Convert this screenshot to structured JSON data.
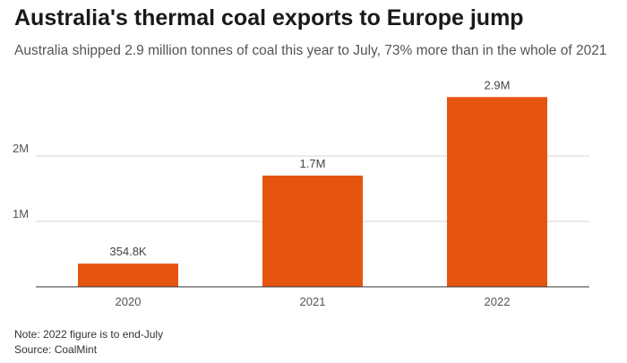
{
  "title": "Australia's thermal coal exports to Europe jump",
  "subtitle": "Australia shipped 2.9 million tonnes of coal this year to July, 73% more than in the whole of 2021",
  "note": "Note: 2022 figure is to end-July",
  "source": "Source: CoalMint",
  "colors": {
    "bar": "#e55510",
    "grid": "#d6d6d6",
    "axis": "#333333"
  },
  "chart_data": {
    "type": "bar",
    "title": "Australia's thermal coal exports to Europe jump",
    "subtitle": "Australia shipped 2.9 million tonnes of coal this year to July, 73% more than in the whole of 2021",
    "categories": [
      "2020",
      "2021",
      "2022"
    ],
    "values": [
      354800,
      1700000,
      2900000
    ],
    "data_labels": [
      "354.8K",
      "1.7M",
      "2.9M"
    ],
    "xlabel": "",
    "ylabel": "",
    "ylim": [
      0,
      3000000
    ],
    "yticks": [
      {
        "value": 1000000,
        "label": "1M"
      },
      {
        "value": 2000000,
        "label": "2M"
      }
    ],
    "grid": true
  }
}
